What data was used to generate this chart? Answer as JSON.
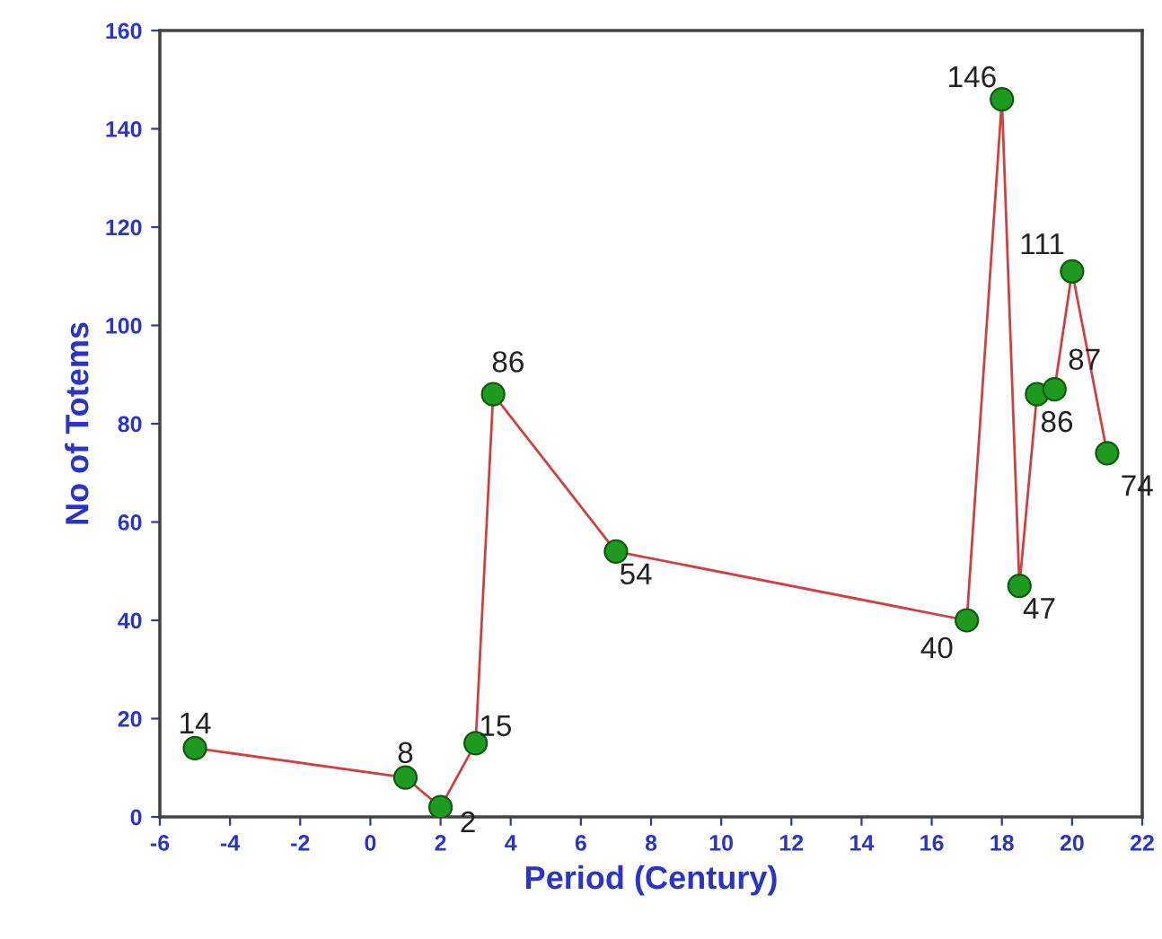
{
  "chart_data": {
    "type": "line",
    "xlabel": "Period (Century)",
    "ylabel": "No of Totems",
    "x": [
      -5,
      1,
      2,
      3,
      3.5,
      7,
      17,
      18,
      18.5,
      19,
      19.5,
      20,
      21
    ],
    "series": [
      {
        "color": "#d04040",
        "values": [
          14,
          8,
          2,
          15,
          86,
          54,
          40,
          146,
          47,
          86,
          87,
          111,
          74
        ]
      }
    ],
    "marker": "circle",
    "line_style": "solid",
    "data_labels": true,
    "xlim": [
      -6,
      22
    ],
    "xticks": [
      -6,
      -4,
      -2,
      0,
      2,
      4,
      6,
      8,
      10,
      12,
      14,
      16,
      18,
      20,
      22
    ],
    "ylim": [
      0,
      160
    ],
    "yticks": [
      0,
      20,
      40,
      60,
      80,
      100,
      120,
      140,
      160
    ],
    "grid": false,
    "legend": false
  }
}
